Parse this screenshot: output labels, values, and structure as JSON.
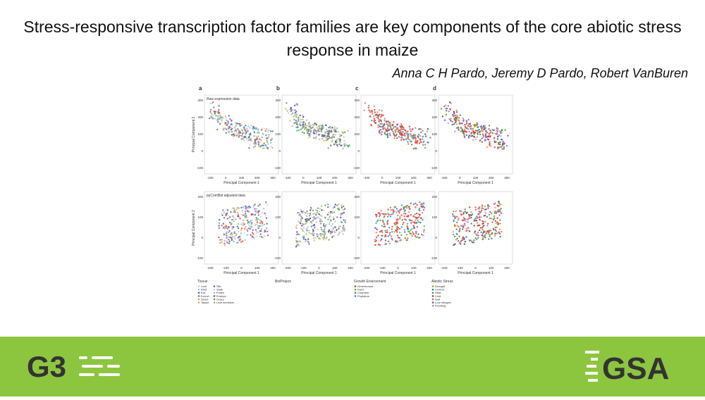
{
  "header": {
    "title": "Stress-responsive transcription factor families are key components of the core abiotic stress response in maize",
    "authors": "Anna C H Pardo, Jeremy D Pardo, Robert VanBuren"
  },
  "figure": {
    "panel_labels": [
      "a",
      "b",
      "c",
      "d"
    ],
    "rows": [
      {
        "label": "Raw expression data",
        "y_axis": "Principal Component 2",
        "x_axis": "Principal Component 1",
        "yticks": [
          "300",
          "200",
          "100",
          "0",
          "-100"
        ],
        "xticks": [
          "-100",
          "0",
          "100",
          "200",
          "300"
        ]
      },
      {
        "label": "pyComBat adjusted data",
        "y_axis": "Principal Component 2",
        "x_axis": "Principal Component 1",
        "yticks": [
          "200",
          "100",
          "0",
          "-100"
        ],
        "xticks": [
          "-200",
          "-100",
          "0",
          "100",
          "200"
        ]
      }
    ],
    "legends": [
      {
        "title": "Tissue",
        "items": [
          "Leaf",
          "Root",
          "Ear",
          "Kernel",
          "Shoot",
          "Tassel",
          "Silk",
          "Stalk",
          "Pollen",
          "Embryo",
          "Ovary",
          "Leaf meristem"
        ]
      },
      {
        "title": "BioProject",
        "items": []
      },
      {
        "title": "Growth Environment",
        "items": [
          "Greenhouse",
          "Field",
          "Chamber",
          "Phytotron"
        ]
      },
      {
        "title": "Abiotic Stress",
        "items": [
          "Drought",
          "Control",
          "Heat",
          "Cold",
          "Salt",
          "Low nitrogen",
          "Flooding"
        ]
      }
    ]
  },
  "footer": {
    "left_logo": "G3",
    "right_logo": "GSA"
  }
}
